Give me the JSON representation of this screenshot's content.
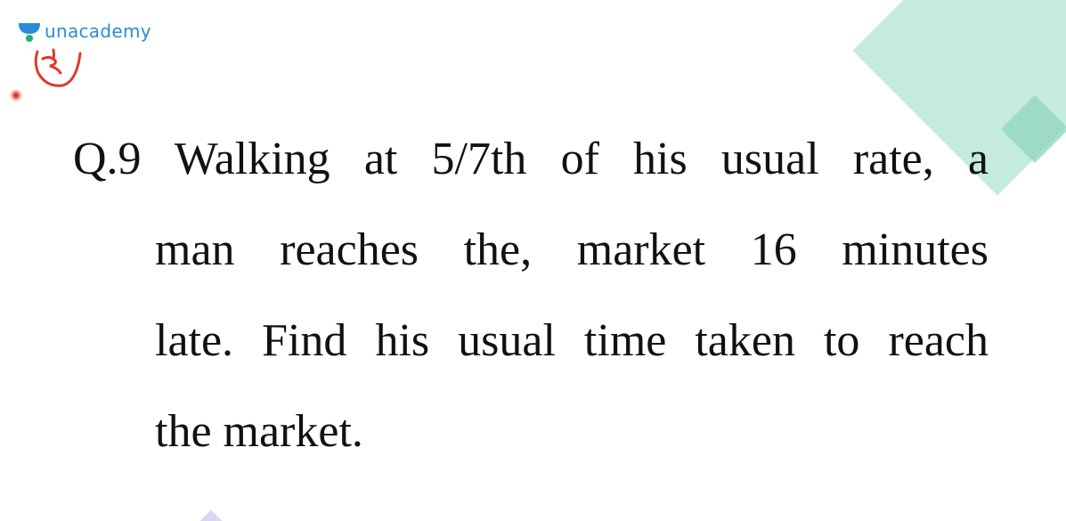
{
  "brand": {
    "name": "unacademy",
    "color": "#2a8cd8",
    "icon": "unacademy-logo-icon"
  },
  "question": {
    "lines": [
      "Q.9 Walking at 5/7th of his usual rate, a",
      "man reaches the, market 16 minutes",
      "late. Find his usual time taken to reach",
      "the market."
    ]
  },
  "annotation": {
    "color": "#e0392b",
    "icon": "handwritten-scribble"
  },
  "decor": {
    "accent_green": "#bfe9d9",
    "accent_green_dark": "#8fd6bc",
    "accent_lavender": "#ddd6f3"
  }
}
